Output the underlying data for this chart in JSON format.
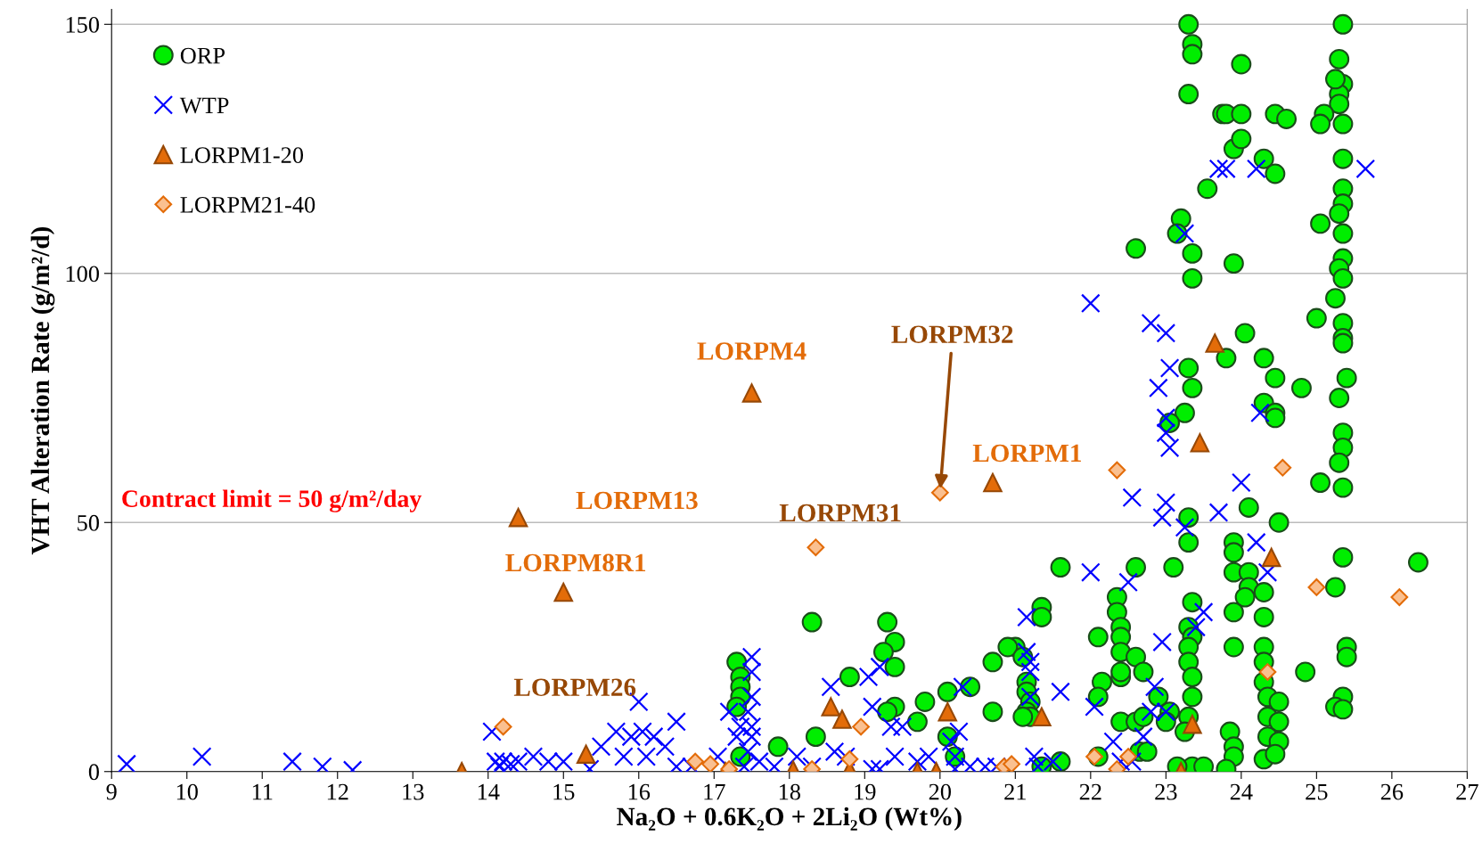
{
  "chart_data": {
    "type": "scatter",
    "xlabel": "Na₂O + 0.6K₂O + 2Li₂O (Wt%)",
    "ylabel": "VHT Alteration Rate (g/m²/d)",
    "xlim": [
      9,
      27
    ],
    "xticks": [
      9,
      10,
      11,
      12,
      13,
      14,
      15,
      16,
      17,
      18,
      19,
      20,
      21,
      22,
      23,
      24,
      25,
      26,
      27
    ],
    "ylim": [
      0,
      153
    ],
    "yticks": [
      0,
      50,
      100,
      150
    ],
    "grid": "y",
    "legend": "top left",
    "series": [
      {
        "name": "ORP",
        "color": "#00ee00",
        "marker": "circle",
        "x": [
          23.3,
          23.35,
          23.35,
          23.3,
          23.2,
          23.15,
          23.35,
          23.35,
          23.3,
          23.35,
          23.25,
          23.05,
          23.3,
          23.3,
          23.35,
          23.3,
          23.35,
          23.3,
          23.3,
          23.35,
          23.35,
          23.3,
          23.25,
          23.35,
          23.5,
          25.35,
          25.3,
          25.35,
          25.3,
          25.25,
          25.3,
          25.35,
          25.1,
          25.05,
          25.35,
          25.35,
          25.35,
          25.3,
          25.35,
          25.05,
          25.35,
          25.3,
          25.35,
          25.25,
          25.35,
          25.35,
          25.35,
          25.0,
          25.4,
          25.3,
          25.35,
          25.35,
          25.3,
          25.05,
          25.35,
          25.35,
          25.25,
          25.4,
          25.4,
          25.35,
          25.25,
          25.35,
          23.75,
          23.8,
          24.0,
          24.45,
          24.6,
          24.0,
          23.9,
          24.0,
          24.3,
          24.45,
          23.55,
          23.9,
          24.05,
          23.8,
          24.3,
          24.45,
          24.8,
          24.3,
          24.45,
          24.45,
          24.1,
          24.5,
          23.9,
          23.9,
          23.9,
          24.1,
          24.1,
          24.05,
          23.9,
          24.3,
          24.3,
          24.3,
          24.3,
          24.3,
          24.35,
          24.5,
          24.35,
          24.5,
          23.9,
          23.85,
          23.9,
          23.9,
          23.8,
          24.35,
          24.5,
          24.3,
          24.45,
          24.85,
          26.35,
          22.6,
          22.6,
          23.1,
          22.1,
          22.35,
          22.35,
          22.4,
          22.4,
          22.4,
          22.15,
          22.4,
          22.4,
          22.1,
          22.6,
          22.7,
          22.4,
          22.6,
          22.7,
          22.65,
          22.75,
          22.1,
          23.05,
          23.0,
          22.9,
          23.15,
          21.6,
          21.35,
          21.35,
          21.0,
          20.9,
          20.7,
          21.1,
          21.15,
          21.15,
          21.2,
          21.15,
          21.2,
          21.1,
          21.6,
          20.7,
          21.35,
          19.3,
          19.4,
          19.25,
          19.4,
          19.4,
          19.3,
          19.7,
          19.8,
          20.4,
          20.1,
          20.1,
          20.2,
          17.3,
          17.35,
          17.35,
          17.35,
          17.3,
          17.35,
          18.3,
          18.8,
          18.35,
          17.85
        ],
        "values": [
          150,
          146,
          144,
          136,
          111,
          108,
          104,
          99,
          81,
          77,
          72,
          70,
          51,
          46,
          34,
          29,
          27,
          25,
          22,
          19,
          15,
          11,
          8,
          1,
          1,
          150,
          143,
          138,
          136,
          139,
          134,
          130,
          132,
          130,
          123,
          117,
          114,
          112,
          108,
          110,
          103,
          101,
          99,
          95,
          90,
          87,
          86,
          91,
          79,
          75,
          68,
          65,
          62,
          58,
          57,
          43,
          37,
          25,
          23,
          15,
          13,
          12.5,
          132,
          132,
          132,
          132,
          131,
          142,
          125,
          127,
          123,
          120,
          117,
          102,
          88,
          83,
          83,
          79,
          77,
          74,
          72,
          71,
          53,
          50,
          46,
          44,
          40,
          40,
          37,
          35,
          32,
          36,
          31,
          25,
          22,
          18,
          15,
          14,
          11,
          10,
          25,
          8,
          5,
          3,
          0.5,
          7,
          6,
          2.5,
          3.5,
          20,
          42,
          105,
          41,
          41,
          27,
          35,
          32,
          29,
          27,
          24,
          18,
          19,
          20,
          15,
          23,
          20,
          10,
          10,
          11,
          4,
          4,
          3,
          12,
          10,
          15,
          1,
          41,
          33,
          31,
          25,
          25,
          22,
          23,
          18,
          16,
          14,
          12,
          11,
          11,
          2,
          12,
          1,
          30,
          26,
          24,
          21,
          13,
          12,
          10,
          14,
          17,
          16,
          7,
          3,
          22,
          19,
          17,
          15,
          13,
          3,
          30,
          19,
          7,
          5
        ]
      },
      {
        "name": "WTP",
        "color": "#0000ff",
        "marker": "cross",
        "x": [
          9.2,
          10.2,
          11.4,
          11.8,
          12.2,
          14.05,
          14.1,
          14.15,
          14.2,
          14.3,
          14.4,
          14.6,
          14.8,
          15.0,
          15.35,
          15.5,
          15.7,
          15.8,
          15.9,
          16.0,
          16.05,
          16.1,
          16.2,
          16.35,
          16.5,
          16.5,
          16.7,
          17.05,
          17.2,
          17.3,
          17.35,
          17.5,
          17.5,
          17.5,
          17.45,
          17.5,
          17.5,
          17.45,
          17.6,
          17.4,
          17.8,
          18.1,
          18.3,
          18.55,
          18.6,
          18.75,
          19.05,
          19.2,
          19.1,
          19.35,
          19.5,
          19.4,
          19.7,
          19.85,
          19.1,
          19.2,
          20.15,
          20.25,
          20.3,
          20.2,
          20.4,
          20.2,
          20.6,
          20.75,
          21.15,
          21.15,
          21.2,
          21.2,
          21.2,
          21.3,
          21.25,
          21.6,
          21.5,
          22.0,
          22.0,
          22.05,
          22.3,
          22.5,
          22.55,
          22.8,
          23.0,
          22.9,
          23.05,
          23.0,
          23.0,
          23.05,
          23.0,
          22.95,
          23.25,
          23.25,
          22.95,
          22.85,
          23.0,
          22.8,
          23.5,
          23.4,
          23.7,
          23.7,
          23.8,
          24.2,
          24.25,
          24.0,
          24.2,
          24.35,
          25.65,
          22.4,
          22.7,
          22.55
        ],
        "values": [
          1.5,
          3,
          2,
          1,
          0.3,
          8,
          2,
          1,
          2,
          1.5,
          2,
          3,
          2,
          2,
          0.5,
          5,
          8,
          3,
          7,
          14,
          8,
          3,
          7,
          5,
          10,
          1,
          1,
          3,
          12,
          7,
          9,
          23,
          20,
          15,
          12,
          9,
          7,
          4,
          2,
          1,
          1,
          3,
          1,
          17,
          4,
          3,
          19,
          21,
          13,
          9,
          9,
          3,
          2,
          3,
          0.5,
          0.5,
          6,
          8,
          17,
          3,
          1,
          0.5,
          1,
          1,
          31,
          24,
          22,
          20,
          15,
          1,
          3,
          16,
          2,
          94,
          40,
          13,
          6,
          38,
          55,
          90,
          88,
          77,
          81,
          71,
          68,
          65,
          54,
          51,
          49,
          108,
          26,
          17,
          12,
          12,
          32,
          29,
          52,
          121,
          121,
          121,
          72,
          58,
          46,
          40,
          121,
          2,
          7,
          2
        ]
      },
      {
        "name": "LORPM1-20",
        "color": "#e36c09",
        "marker": "triangle",
        "x": [
          13.65,
          14.4,
          15.0,
          15.3,
          17.5,
          17.15,
          18.05,
          18.55,
          18.7,
          18.8,
          19.7,
          19.95,
          20.1,
          20.7,
          21.35,
          23.2,
          23.35,
          23.45,
          23.65,
          24.4
        ],
        "values": [
          0,
          51,
          36,
          3.5,
          76,
          0,
          0.3,
          13,
          10.5,
          0.3,
          0,
          0,
          12,
          58,
          11,
          0,
          9.5,
          66,
          86,
          43
        ]
      },
      {
        "name": "LORPM21-40",
        "color": "#fac090",
        "marker": "diamond",
        "x": [
          14.2,
          16.75,
          16.95,
          17.2,
          18.3,
          18.35,
          18.8,
          18.95,
          20.0,
          20.85,
          20.95,
          22.05,
          22.35,
          22.35,
          22.5,
          24.35,
          24.55,
          25.0,
          26.1
        ],
        "values": [
          9,
          2,
          1.5,
          0.5,
          0.5,
          45,
          2.5,
          9,
          56,
          1,
          1.5,
          3,
          60.5,
          0.5,
          3,
          20,
          61,
          37,
          35
        ]
      }
    ],
    "annotations": [
      "Contract limit = 50 g/m²/day",
      {
        "text": "LORPM4",
        "x": 17.5,
        "y": 76
      },
      {
        "text": "LORPM13",
        "x": 14.4,
        "y": 51
      },
      {
        "text": "LORPM8R1",
        "x": 15.0,
        "y": 36
      },
      {
        "text": "LORPM26",
        "x": 14.2,
        "y": 9
      },
      {
        "text": "LORPM31",
        "x": 18.35,
        "y": 45
      },
      {
        "text": "LORPM32",
        "x": 20.0,
        "y": 56
      },
      {
        "text": "LORPM1",
        "x": 20.7,
        "y": 58
      }
    ]
  }
}
